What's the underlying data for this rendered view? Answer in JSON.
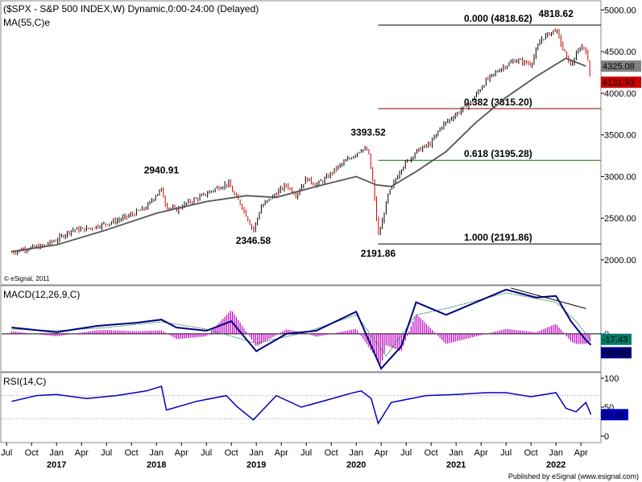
{
  "chart_data": [
    {
      "type": "candlestick",
      "title": "($SPX - S&P 500 INDEX,W) Dynamic,0:00-24:00 (Delayed)",
      "indicator_label": "MA(55,C)e",
      "watermark": "© eSignal, 2011",
      "ylim": [
        1700,
        5100
      ],
      "y_ticks": [
        "2000.00",
        "2500.00",
        "3000.00",
        "3500.00",
        "4000.00",
        "4500.00",
        "5000.00"
      ],
      "y_tick_values": [
        2000,
        2500,
        3000,
        3500,
        4000,
        4500,
        5000
      ],
      "last_price": 4131.93,
      "ma_value": 4325.08,
      "last_price_label": "4131.93",
      "ma_value_label": "4325.08",
      "price_path": [
        [
          2016.55,
          2090
        ],
        [
          2016.7,
          2140
        ],
        [
          2016.85,
          2160
        ],
        [
          2017.0,
          2240
        ],
        [
          2017.15,
          2360
        ],
        [
          2017.3,
          2370
        ],
        [
          2017.45,
          2420
        ],
        [
          2017.6,
          2470
        ],
        [
          2017.75,
          2540
        ],
        [
          2017.9,
          2630
        ],
        [
          2018.0,
          2790
        ],
        [
          2018.05,
          2840
        ],
        [
          2018.1,
          2640
        ],
        [
          2018.2,
          2600
        ],
        [
          2018.3,
          2680
        ],
        [
          2018.45,
          2760
        ],
        [
          2018.6,
          2860
        ],
        [
          2018.72,
          2920
        ],
        [
          2018.78,
          2780
        ],
        [
          2018.85,
          2660
        ],
        [
          2018.97,
          2350
        ],
        [
          2019.05,
          2640
        ],
        [
          2019.2,
          2800
        ],
        [
          2019.3,
          2900
        ],
        [
          2019.4,
          2780
        ],
        [
          2019.5,
          2980
        ],
        [
          2019.6,
          2900
        ],
        [
          2019.7,
          2980
        ],
        [
          2019.8,
          3100
        ],
        [
          2019.95,
          3230
        ],
        [
          2020.05,
          3330
        ],
        [
          2020.12,
          3310
        ],
        [
          2020.17,
          2900
        ],
        [
          2020.22,
          2300
        ],
        [
          2020.25,
          2400
        ],
        [
          2020.32,
          2780
        ],
        [
          2020.45,
          3100
        ],
        [
          2020.6,
          3300
        ],
        [
          2020.75,
          3400
        ],
        [
          2020.85,
          3600
        ],
        [
          2021.0,
          3750
        ],
        [
          2021.15,
          3900
        ],
        [
          2021.3,
          4150
        ],
        [
          2021.45,
          4300
        ],
        [
          2021.6,
          4400
        ],
        [
          2021.75,
          4350
        ],
        [
          2021.85,
          4650
        ],
        [
          2022.0,
          4770
        ],
        [
          2022.08,
          4500
        ],
        [
          2022.15,
          4330
        ],
        [
          2022.25,
          4570
        ],
        [
          2022.3,
          4520
        ],
        [
          2022.35,
          4131.93
        ]
      ],
      "ma_path": [
        [
          2016.55,
          2100
        ],
        [
          2017.0,
          2180
        ],
        [
          2017.5,
          2360
        ],
        [
          2018.0,
          2560
        ],
        [
          2018.5,
          2700
        ],
        [
          2018.9,
          2770
        ],
        [
          2019.2,
          2750
        ],
        [
          2019.6,
          2880
        ],
        [
          2020.0,
          3000
        ],
        [
          2020.2,
          2900
        ],
        [
          2020.35,
          2880
        ],
        [
          2020.6,
          3060
        ],
        [
          2020.9,
          3300
        ],
        [
          2021.2,
          3650
        ],
        [
          2021.5,
          3950
        ],
        [
          2021.8,
          4200
        ],
        [
          2022.1,
          4420
        ],
        [
          2022.3,
          4325.08
        ]
      ],
      "annotations": [
        {
          "label": "2940.91",
          "x": 2018.05,
          "value": 2940.91
        },
        {
          "label": "3393.52",
          "x": 2020.12,
          "value": 3393.52
        },
        {
          "label": "2346.58",
          "x": 2018.97,
          "value": 2346.58
        },
        {
          "label": "2191.86",
          "x": 2020.22,
          "value": 2191.86
        },
        {
          "label": "4818.62",
          "x": 2022.0,
          "value": 4818.62
        }
      ],
      "fibonacci": [
        {
          "label": "0.000 (4818.62)",
          "value": 4818.62,
          "color": "#000000"
        },
        {
          "label": "0.382 (3815.20)",
          "value": 3815.2,
          "color": "#8b0000"
        },
        {
          "label": "0.618 (3195.28)",
          "value": 3195.28,
          "color": "#007000"
        },
        {
          "label": "1.000 (2191.86)",
          "value": 2191.86,
          "color": "#000000"
        }
      ]
    },
    {
      "type": "line",
      "title": "MACD(12,26,9,C)",
      "ylim": [
        -120,
        150
      ],
      "y_ticks": [
        "0"
      ],
      "y_tick_values": [
        0
      ],
      "series": [
        {
          "values": [
            [
              2016.55,
              20
            ],
            [
              2017.0,
              5
            ],
            [
              2017.4,
              25
            ],
            [
              2017.8,
              35
            ],
            [
              2018.05,
              45
            ],
            [
              2018.2,
              20
            ],
            [
              2018.5,
              10
            ],
            [
              2018.75,
              40
            ],
            [
              2019.0,
              -55
            ],
            [
              2019.3,
              0
            ],
            [
              2019.6,
              10
            ],
            [
              2020.0,
              70
            ],
            [
              2020.25,
              -110
            ],
            [
              2020.45,
              -40
            ],
            [
              2020.6,
              100
            ],
            [
              2020.9,
              60
            ],
            [
              2021.2,
              100
            ],
            [
              2021.5,
              140
            ],
            [
              2021.8,
              115
            ],
            [
              2022.0,
              120
            ],
            [
              2022.15,
              40
            ],
            [
              2022.3,
              -20
            ],
            [
              2022.35,
              -35
            ]
          ],
          "color": "#000080"
        },
        {
          "values": [
            [
              2016.55,
              15
            ],
            [
              2017.0,
              10
            ],
            [
              2017.5,
              20
            ],
            [
              2018.05,
              38
            ],
            [
              2018.5,
              15
            ],
            [
              2019.0,
              -30
            ],
            [
              2019.5,
              5
            ],
            [
              2020.0,
              60
            ],
            [
              2020.3,
              -70
            ],
            [
              2020.6,
              60
            ],
            [
              2020.9,
              80
            ],
            [
              2021.5,
              130
            ],
            [
              2022.0,
              100
            ],
            [
              2022.2,
              40
            ],
            [
              2022.35,
              -20
            ]
          ],
          "color": "#2e8b57"
        }
      ],
      "values_labels": [
        "-17.43",
        "-44.46"
      ],
      "trendline": [
        [
          2021.55,
          145
        ],
        [
          2022.3,
          80
        ]
      ]
    },
    {
      "type": "line",
      "title": "RSI(14,C)",
      "ylim": [
        0,
        100
      ],
      "y_ticks": [
        "100",
        "50",
        "0"
      ],
      "y_tick_values": [
        100,
        50,
        0
      ],
      "ref_lines": [
        70,
        30
      ],
      "series": [
        {
          "values": [
            [
              2016.55,
              60
            ],
            [
              2016.8,
              70
            ],
            [
              2017.0,
              72
            ],
            [
              2017.3,
              65
            ],
            [
              2017.6,
              70
            ],
            [
              2017.9,
              78
            ],
            [
              2018.05,
              86
            ],
            [
              2018.1,
              45
            ],
            [
              2018.4,
              60
            ],
            [
              2018.7,
              70
            ],
            [
              2018.8,
              52
            ],
            [
              2018.97,
              28
            ],
            [
              2019.2,
              70
            ],
            [
              2019.45,
              50
            ],
            [
              2019.7,
              62
            ],
            [
              2019.95,
              74
            ],
            [
              2020.05,
              78
            ],
            [
              2020.15,
              65
            ],
            [
              2020.22,
              22
            ],
            [
              2020.35,
              58
            ],
            [
              2020.7,
              70
            ],
            [
              2021.0,
              72
            ],
            [
              2021.3,
              75
            ],
            [
              2021.5,
              75
            ],
            [
              2021.75,
              68
            ],
            [
              2022.0,
              75
            ],
            [
              2022.1,
              48
            ],
            [
              2022.2,
              42
            ],
            [
              2022.3,
              58
            ],
            [
              2022.35,
              37.05
            ]
          ],
          "color": "#0000c0"
        }
      ],
      "value_label": "37.05"
    }
  ],
  "x_axis": {
    "months": [
      {
        "label": "Jul",
        "x": 2016.5
      },
      {
        "label": "Oct",
        "x": 2016.75
      },
      {
        "label": "Jan",
        "x": 2017.0
      },
      {
        "label": "Apr",
        "x": 2017.25
      },
      {
        "label": "Jul",
        "x": 2017.5
      },
      {
        "label": "Oct",
        "x": 2017.75
      },
      {
        "label": "Jan",
        "x": 2018.0
      },
      {
        "label": "Apr",
        "x": 2018.25
      },
      {
        "label": "Jul",
        "x": 2018.5
      },
      {
        "label": "Oct",
        "x": 2018.75
      },
      {
        "label": "Jan",
        "x": 2019.0
      },
      {
        "label": "Apr",
        "x": 2019.25
      },
      {
        "label": "Jul",
        "x": 2019.5
      },
      {
        "label": "Oct",
        "x": 2019.75
      },
      {
        "label": "Jan",
        "x": 2020.0
      },
      {
        "label": "Apr",
        "x": 2020.25
      },
      {
        "label": "Jul",
        "x": 2020.5
      },
      {
        "label": "Oct",
        "x": 2020.75
      },
      {
        "label": "Jan",
        "x": 2021.0
      },
      {
        "label": "Apr",
        "x": 2021.25
      },
      {
        "label": "Jul",
        "x": 2021.5
      },
      {
        "label": "Oct",
        "x": 2021.75
      },
      {
        "label": "Jan",
        "x": 2022.0
      },
      {
        "label": "Apr",
        "x": 2022.25
      }
    ],
    "years": [
      {
        "label": "2017",
        "x": 2017.0
      },
      {
        "label": "2018",
        "x": 2018.0
      },
      {
        "label": "2019",
        "x": 2019.0
      },
      {
        "label": "2020",
        "x": 2020.0
      },
      {
        "label": "2021",
        "x": 2021.0
      },
      {
        "label": "2022",
        "x": 2022.0
      }
    ]
  },
  "footer": "Published by eSignal (www.esignal.com)",
  "colors": {
    "price_up": "#000000",
    "price_down": "#cc0000",
    "ma": "#555555",
    "macd_hist": "#c000c0",
    "last_price_bg": "#cc0000",
    "ma_bg": "#808080",
    "macd_bg": "#007a6a",
    "rsi_bg": "#0000c0"
  }
}
